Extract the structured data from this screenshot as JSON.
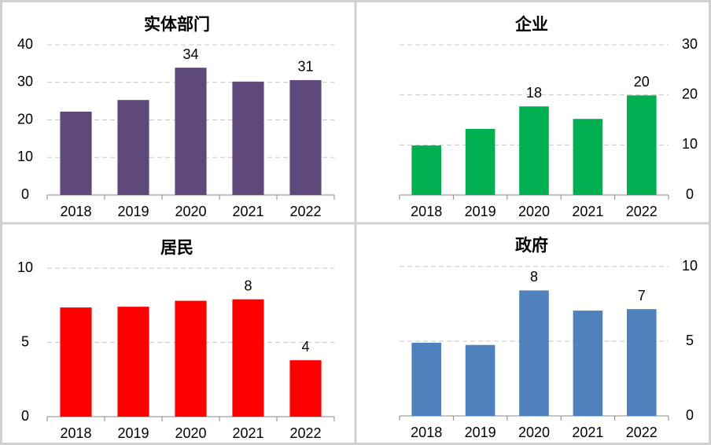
{
  "chart_data": [
    {
      "type": "bar",
      "title": "实体部门",
      "categories": [
        "2018",
        "2019",
        "2020",
        "2021",
        "2022"
      ],
      "values": [
        22.2,
        25.3,
        33.9,
        30.2,
        30.6
      ],
      "value_labels": [
        null,
        null,
        "34",
        null,
        "31"
      ],
      "color": "#5f497a",
      "ylim": [
        0,
        40
      ],
      "yticks": [
        0,
        10,
        20,
        30,
        40
      ],
      "grid": true,
      "y_axis_side": "left"
    },
    {
      "type": "bar",
      "title": "企业",
      "categories": [
        "2018",
        "2019",
        "2020",
        "2021",
        "2022"
      ],
      "values": [
        9.9,
        13.2,
        17.7,
        15.2,
        19.9
      ],
      "value_labels": [
        null,
        null,
        "18",
        null,
        "20"
      ],
      "color": "#00b050",
      "ylim": [
        0,
        30
      ],
      "yticks": [
        0,
        10,
        20,
        30
      ],
      "grid": true,
      "y_axis_side": "right"
    },
    {
      "type": "bar",
      "title": "居民",
      "categories": [
        "2018",
        "2019",
        "2020",
        "2021",
        "2022"
      ],
      "values": [
        7.35,
        7.4,
        7.8,
        7.9,
        3.8
      ],
      "value_labels": [
        null,
        null,
        null,
        "8",
        "4"
      ],
      "color": "#ff0000",
      "ylim": [
        0,
        10
      ],
      "yticks": [
        0,
        5,
        10
      ],
      "grid": true,
      "y_axis_side": "left"
    },
    {
      "type": "bar",
      "title": "政府",
      "categories": [
        "2018",
        "2019",
        "2020",
        "2021",
        "2022"
      ],
      "values": [
        4.9,
        4.75,
        8.4,
        7.05,
        7.15
      ],
      "value_labels": [
        null,
        null,
        "8",
        null,
        "7"
      ],
      "color": "#4f81bd",
      "ylim": [
        0,
        10
      ],
      "yticks": [
        0,
        5,
        10
      ],
      "grid": true,
      "y_axis_side": "right"
    }
  ]
}
